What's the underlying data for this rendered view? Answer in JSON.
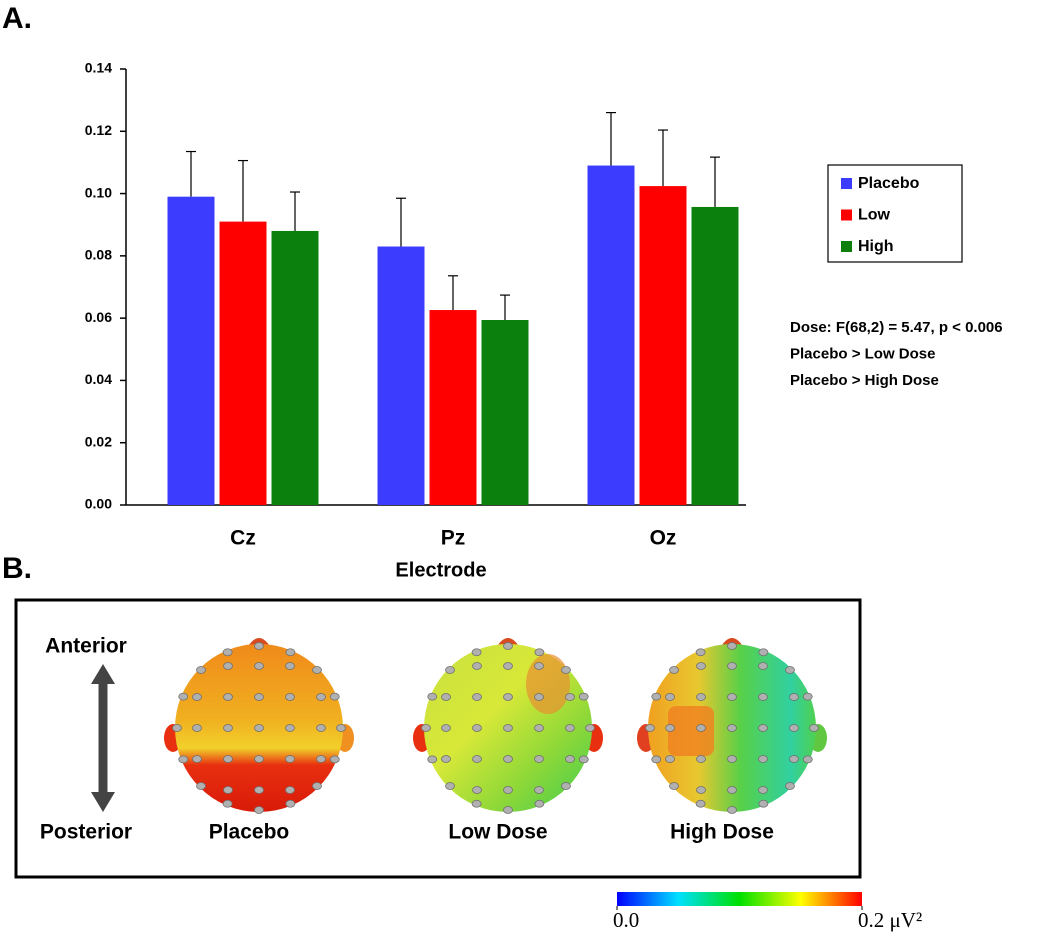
{
  "chart_data": {
    "type": "bar",
    "panel_label": "A.",
    "x_label": "Electrode",
    "categories": [
      "Cz",
      "Pz",
      "Oz"
    ],
    "series": [
      {
        "name": "Placebo",
        "color": "#3c3cff",
        "values": [
          0.099,
          0.083,
          0.109
        ],
        "errors": [
          0.0145,
          0.0155,
          0.017
        ]
      },
      {
        "name": "Low",
        "color": "#ff0000",
        "values": [
          0.091,
          0.0626,
          0.1024
        ],
        "errors": [
          0.0196,
          0.011,
          0.018
        ]
      },
      {
        "name": "High",
        "color": "#0c800c",
        "values": [
          0.088,
          0.0594,
          0.0957
        ],
        "errors": [
          0.0125,
          0.008,
          0.016
        ]
      }
    ],
    "ylim": [
      0,
      0.14
    ],
    "yticks": [
      {
        "value": 0,
        "label": "0.00"
      },
      {
        "value": 0.02,
        "label": "0.02"
      },
      {
        "value": 0.04,
        "label": "0.04"
      },
      {
        "value": 0.06,
        "label": "0.06"
      },
      {
        "value": 0.08,
        "label": "0.08"
      },
      {
        "value": 0.1,
        "label": "0.10"
      },
      {
        "value": 0.12,
        "label": "0.12"
      },
      {
        "value": 0.14,
        "label": "0.14"
      }
    ],
    "legend": "right",
    "annotations": [
      "Dose: F(68,2) = 5.47, p < 0.006",
      "Placebo > Low Dose",
      "Placebo > High Dose"
    ]
  },
  "panel_b": {
    "panel_label": "B.",
    "axis_labels": {
      "top": "Anterior",
      "bottom": "Posterior"
    },
    "maps": [
      "Placebo",
      "Low Dose",
      "High Dose"
    ],
    "colorbar": {
      "lim": [
        0,
        0.2
      ],
      "ticks": [
        {
          "value": 0,
          "label": "0.0"
        },
        {
          "value": 0.2,
          "label": "0.2 μV²"
        }
      ]
    }
  }
}
